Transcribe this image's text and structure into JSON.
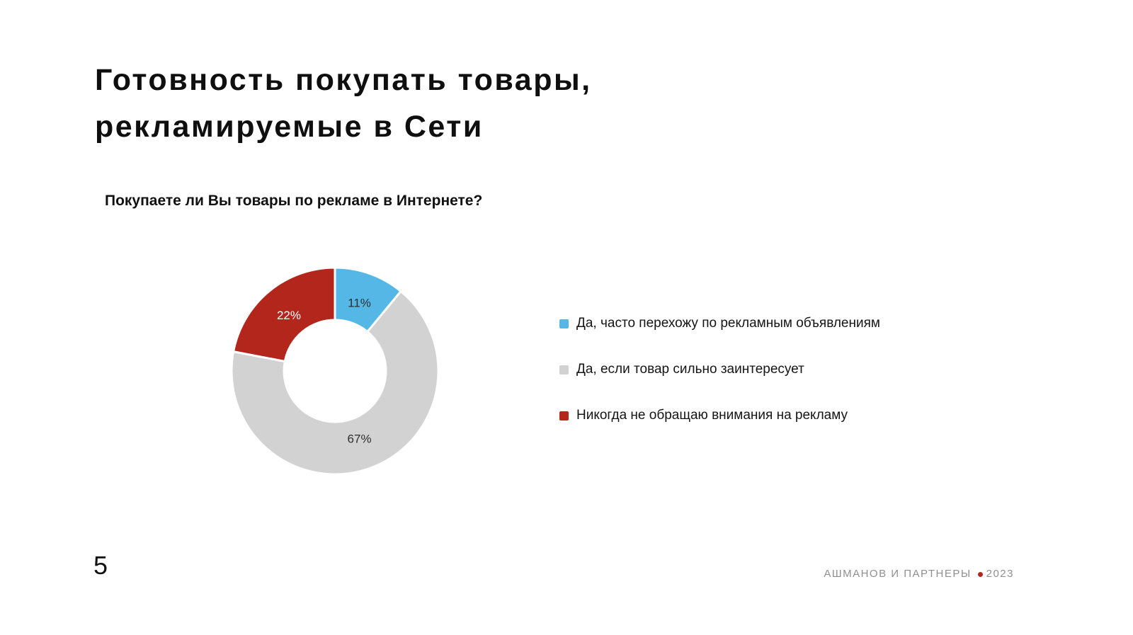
{
  "title": {
    "line1": "Готовность покупать товары,",
    "line2": "рекламируемые в Сети"
  },
  "footer": {
    "page_number": "5",
    "brand": "АШМАНОВ И ПАРТНЕРЫ",
    "year": "2023",
    "dot_color": "#B3261C"
  },
  "chart_data": {
    "type": "pie",
    "subtype": "donut",
    "title": "Покупаете ли Вы товары по рекламе в Интернете?",
    "start_angle": 0,
    "direction": "clockwise",
    "legend_position": "right",
    "categories": [
      "Да, часто перехожу по рекламным объявлениям",
      "Да, если товар сильно заинтересует",
      "Никогда не обращаю внимания на рекламу"
    ],
    "values": [
      11,
      67,
      22
    ],
    "segments": [
      {
        "label": "Да, часто перехожу по рекламным объявлениям",
        "value": 11,
        "display": "11%",
        "color": "#54B7E5",
        "label_color": "#2F2F2F"
      },
      {
        "label": "Да, если товар сильно заинтересует",
        "value": 67,
        "display": "67%",
        "color": "#D2D2D2",
        "label_color": "#2F2F2F"
      },
      {
        "label": "Никогда не обращаю внимания на рекламу",
        "value": 22,
        "display": "22%",
        "color": "#B3261C",
        "label_color": "#FFFFFF"
      }
    ]
  }
}
